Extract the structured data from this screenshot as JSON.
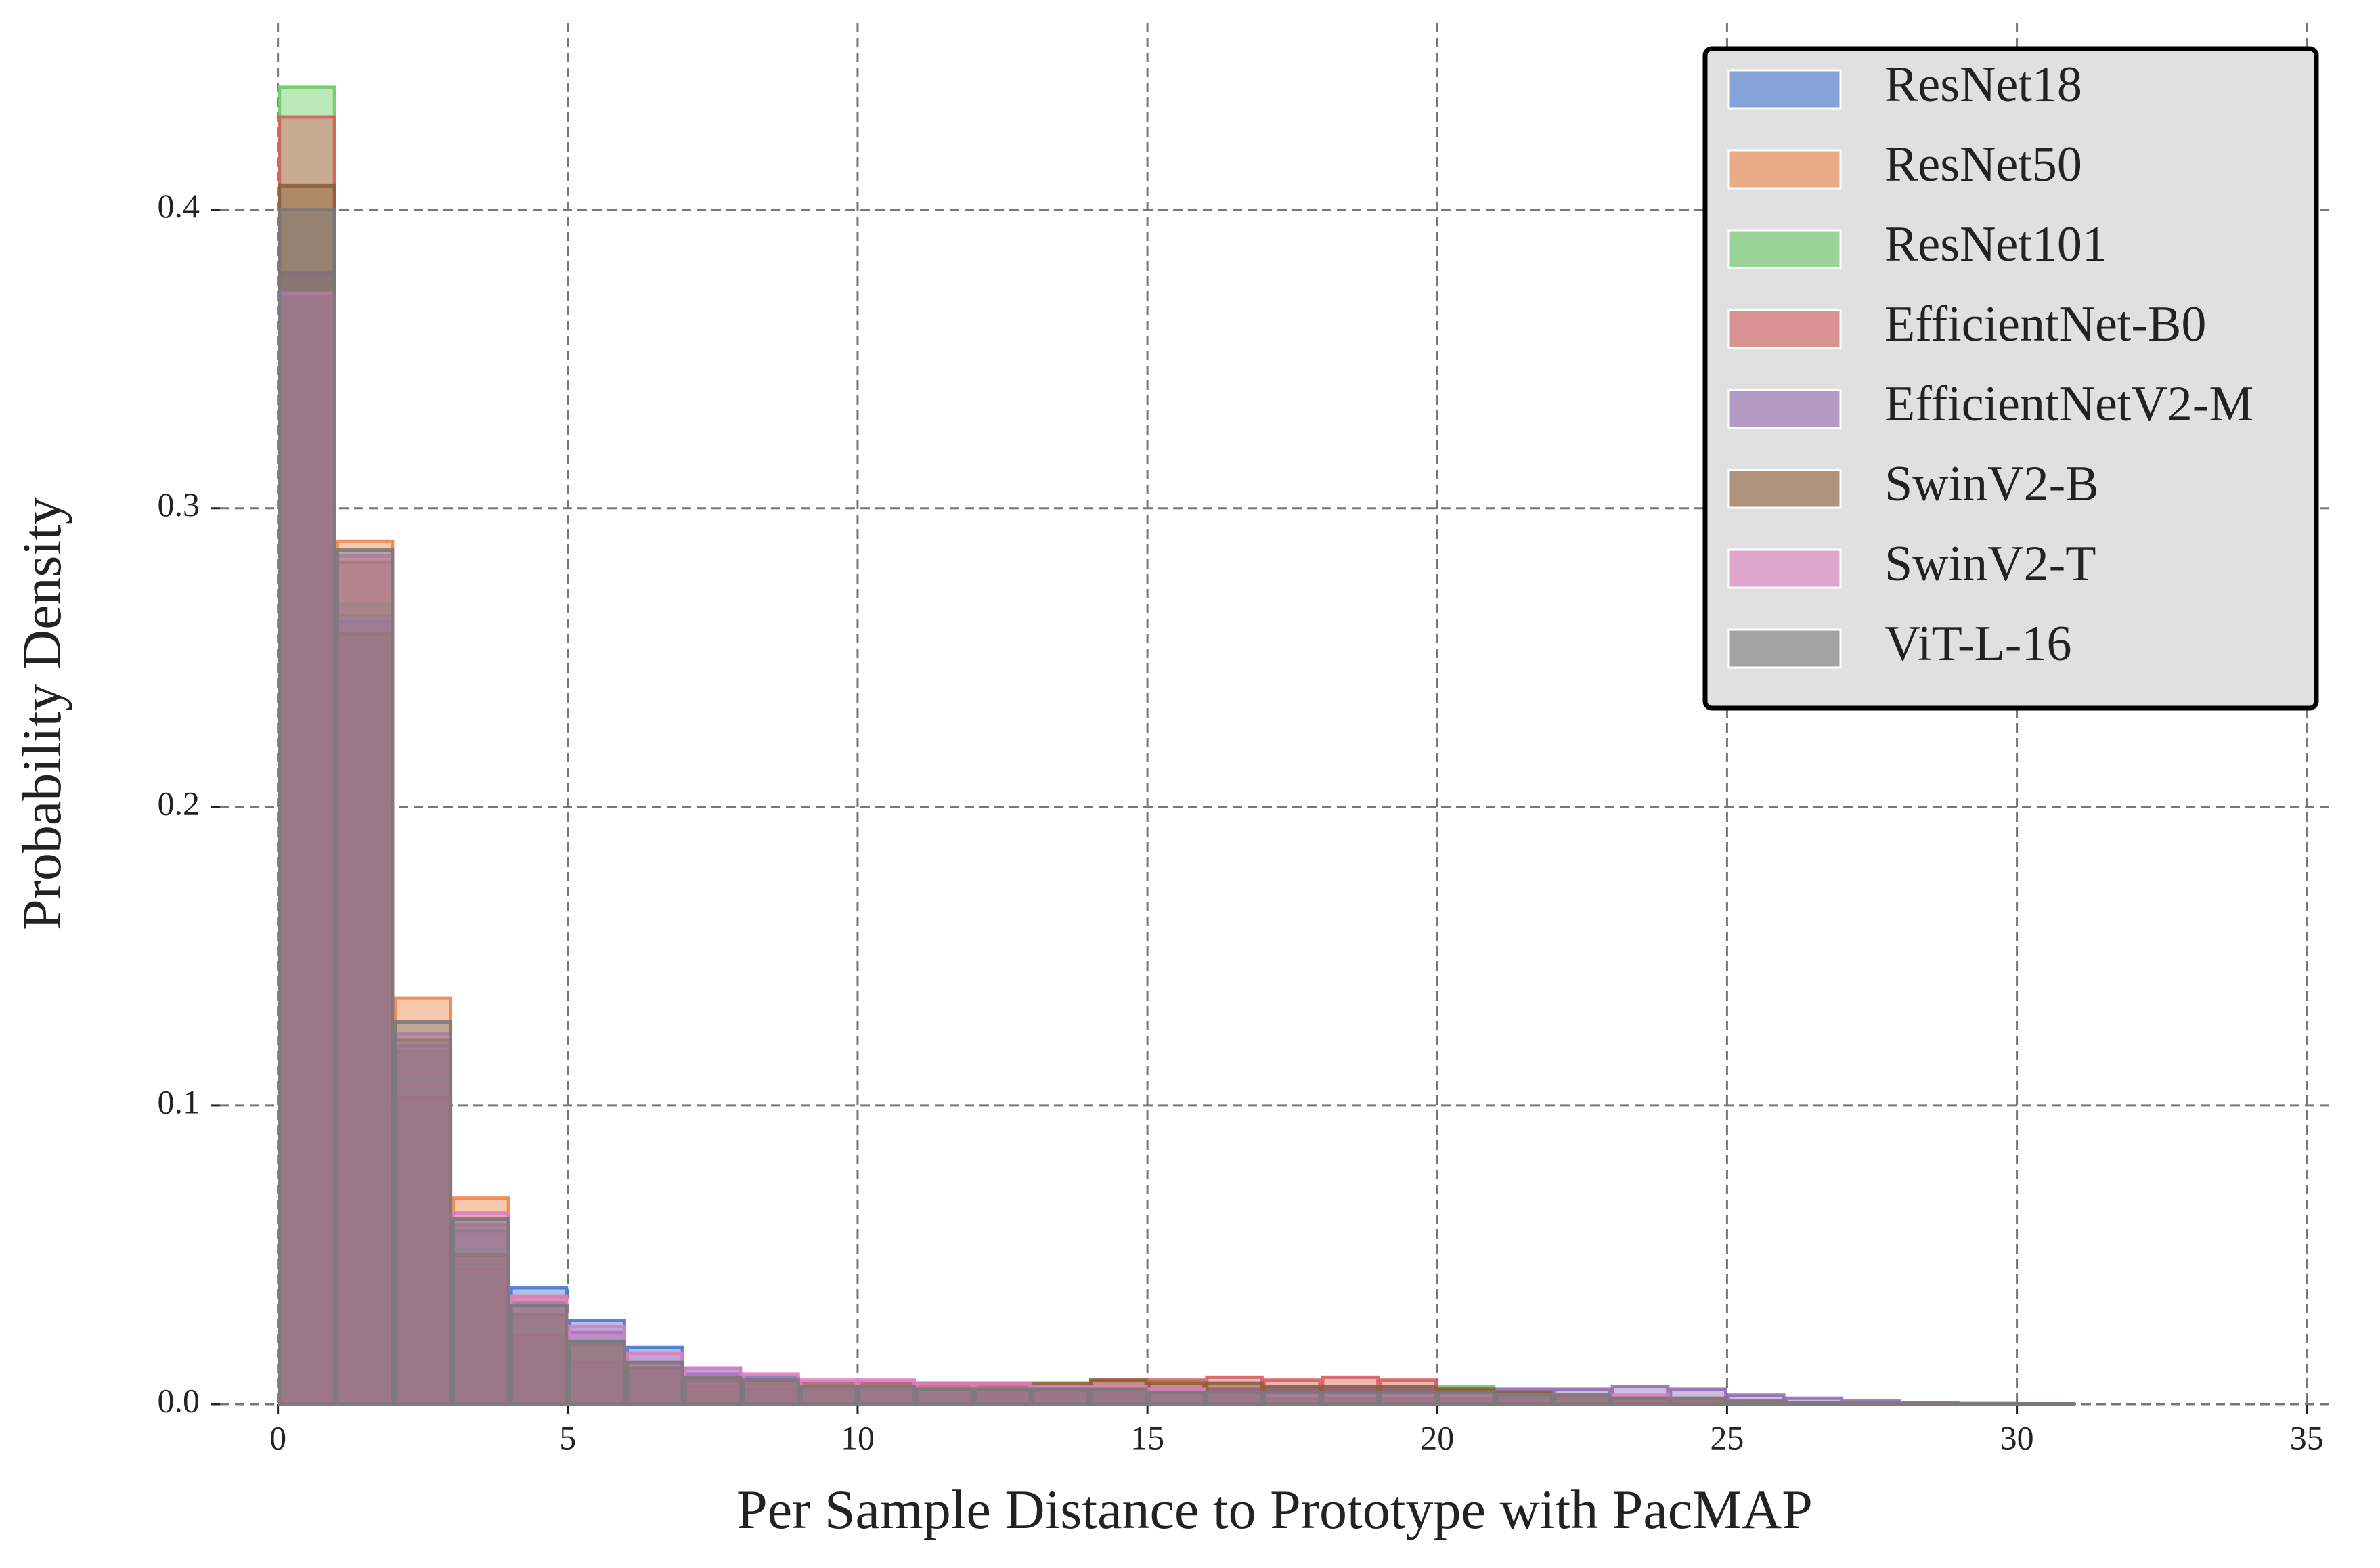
{
  "chart_data": {
    "type": "histogram",
    "xlabel": "Per Sample Distance to Prototype with PacMAP",
    "ylabel": "Probability Density",
    "bins": [
      0,
      1,
      2,
      3,
      4,
      5,
      6,
      7,
      8,
      9,
      10,
      11,
      12,
      13,
      14,
      15,
      16,
      17,
      18,
      19,
      20,
      21,
      22,
      23,
      24,
      25,
      26,
      27,
      28,
      29,
      30,
      31,
      32,
      33,
      34
    ],
    "xlim": [
      -1,
      35.4
    ],
    "ylim": [
      0,
      0.4625
    ],
    "xticks": [
      0,
      5,
      10,
      15,
      20,
      25,
      30,
      35
    ],
    "yticks": [
      {
        "value": 0,
        "label": "0.0"
      },
      0.1,
      0.2,
      0.3,
      0.4
    ],
    "grid": true,
    "legend": "upper right",
    "series": [
      {
        "name": "ResNet18",
        "color": "#4878d0",
        "values": [
          0.378,
          0.264,
          0.118,
          0.06,
          0.039,
          0.028,
          0.019,
          0.012,
          0.009,
          0.006,
          0.006,
          0.005,
          0.005,
          0.005,
          0.005,
          0.004,
          0.004,
          0.004,
          0.004,
          0.004,
          0.003,
          0.003,
          0.002,
          0.002,
          0.001,
          0.001,
          0.0005,
          0.0003,
          0.0002,
          0.0001,
          0.0001,
          0,
          0,
          0
        ]
      },
      {
        "name": "ResNet50",
        "color": "#ee854a",
        "values": [
          0.362,
          0.289,
          0.136,
          0.069,
          0.036,
          0.02,
          0.012,
          0.008,
          0.007,
          0.006,
          0.006,
          0.006,
          0.005,
          0.005,
          0.005,
          0.005,
          0.004,
          0.004,
          0.004,
          0.003,
          0.003,
          0.002,
          0.002,
          0.001,
          0.001,
          0.0005,
          0.0003,
          0.0002,
          0.0001,
          0.0001,
          0,
          0,
          0,
          0
        ]
      },
      {
        "name": "ResNet101",
        "color": "#6acc64",
        "values": [
          0.441,
          0.268,
          0.109,
          0.052,
          0.026,
          0.017,
          0.008,
          0.004,
          0.005,
          0.004,
          0.002,
          0.003,
          0.004,
          0.005,
          0.004,
          0.004,
          0.005,
          0.005,
          0.005,
          0.005,
          0.006,
          0.004,
          0.003,
          0.002,
          0.001,
          0.0005,
          0.0003,
          0.0002,
          0.0001,
          0,
          0,
          0,
          0,
          0
        ]
      },
      {
        "name": "EfficientNet-B0",
        "color": "#d65f5f",
        "values": [
          0.431,
          0.282,
          0.103,
          0.045,
          0.023,
          0.014,
          0.01,
          0.006,
          0.005,
          0.005,
          0.007,
          0.007,
          0.006,
          0.006,
          0.008,
          0.008,
          0.009,
          0.008,
          0.009,
          0.008,
          0.005,
          0.003,
          0.002,
          0.001,
          0.001,
          0.0005,
          0.0003,
          0.0001,
          0,
          0,
          0,
          0,
          0,
          0
        ]
      },
      {
        "name": "EfficientNetV2-M",
        "color": "#956cb4",
        "values": [
          0.379,
          0.262,
          0.12,
          0.058,
          0.034,
          0.024,
          0.014,
          0.01,
          0.008,
          0.006,
          0.005,
          0.005,
          0.004,
          0.004,
          0.004,
          0.004,
          0.005,
          0.005,
          0.005,
          0.005,
          0.005,
          0.005,
          0.005,
          0.006,
          0.005,
          0.003,
          0.002,
          0.001,
          0.0005,
          0.0002,
          0.0001,
          0,
          0,
          0
        ]
      },
      {
        "name": "SwinV2-B",
        "color": "#8c613c",
        "values": [
          0.408,
          0.258,
          0.122,
          0.05,
          0.03,
          0.02,
          0.012,
          0.008,
          0.008,
          0.007,
          0.007,
          0.007,
          0.007,
          0.007,
          0.008,
          0.007,
          0.007,
          0.006,
          0.006,
          0.006,
          0.005,
          0.004,
          0.003,
          0.002,
          0.001,
          0.0005,
          0.0003,
          0.0001,
          0,
          0,
          0,
          0,
          0,
          0
        ]
      },
      {
        "name": "SwinV2-T",
        "color": "#dc7ec0",
        "values": [
          0.372,
          0.284,
          0.124,
          0.064,
          0.036,
          0.026,
          0.017,
          0.012,
          0.01,
          0.008,
          0.008,
          0.007,
          0.007,
          0.006,
          0.006,
          0.005,
          0.004,
          0.003,
          0.003,
          0.003,
          0.003,
          0.003,
          0.003,
          0.003,
          0.002,
          0.001,
          0.0005,
          0.0003,
          0.0001,
          0,
          0,
          0,
          0,
          0
        ]
      },
      {
        "name": "ViT-L-16",
        "color": "#797979",
        "values": [
          0.4,
          0.286,
          0.128,
          0.062,
          0.033,
          0.021,
          0.014,
          0.009,
          0.008,
          0.006,
          0.006,
          0.005,
          0.005,
          0.005,
          0.005,
          0.004,
          0.004,
          0.004,
          0.004,
          0.004,
          0.004,
          0.003,
          0.003,
          0.002,
          0.002,
          0.001,
          0.0005,
          0.0003,
          0.0002,
          0.0001,
          0.0001,
          0,
          0,
          0
        ]
      }
    ]
  }
}
